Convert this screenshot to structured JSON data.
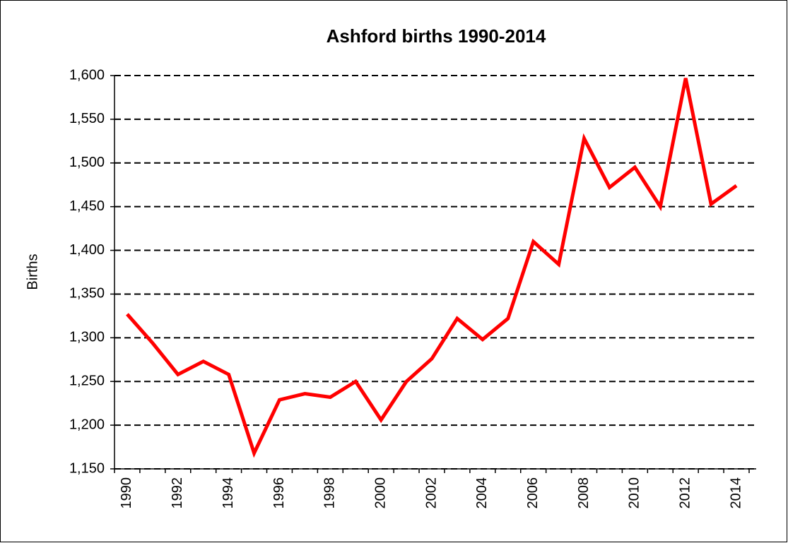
{
  "chart_data": {
    "type": "line",
    "title": "Ashford births 1990-2014",
    "y_label": "Births",
    "categories": [
      "1990",
      null,
      "1992",
      null,
      "1994",
      null,
      "1996",
      null,
      "1998",
      null,
      "2000",
      null,
      "2002",
      null,
      "2004",
      null,
      "2006",
      null,
      "2008",
      null,
      "2010",
      null,
      "2012",
      null,
      "2014"
    ],
    "series": [
      {
        "name": "Births",
        "color": "#ff0000",
        "values": [
          1327,
          1294,
          1258,
          1273,
          1258,
          1168,
          1229,
          1236,
          1232,
          1250,
          1206,
          1250,
          1276,
          1322,
          1298,
          1322,
          1410,
          1384,
          1528,
          1472,
          1495,
          1450,
          1597,
          1453,
          1474
        ]
      }
    ],
    "ylim": [
      1150,
      1600
    ],
    "yticks": [
      {
        "value": 1150,
        "label": "1,150"
      },
      {
        "value": 1200,
        "label": "1,200"
      },
      {
        "value": 1250,
        "label": "1,250"
      },
      {
        "value": 1300,
        "label": "1,300"
      },
      {
        "value": 1350,
        "label": "1,350"
      },
      {
        "value": 1400,
        "label": "1,400"
      },
      {
        "value": 1450,
        "label": "1,450"
      },
      {
        "value": 1500,
        "label": "1,500"
      },
      {
        "value": 1550,
        "label": "1,550"
      },
      {
        "value": 1600,
        "label": "1,600"
      }
    ],
    "grid": true
  }
}
